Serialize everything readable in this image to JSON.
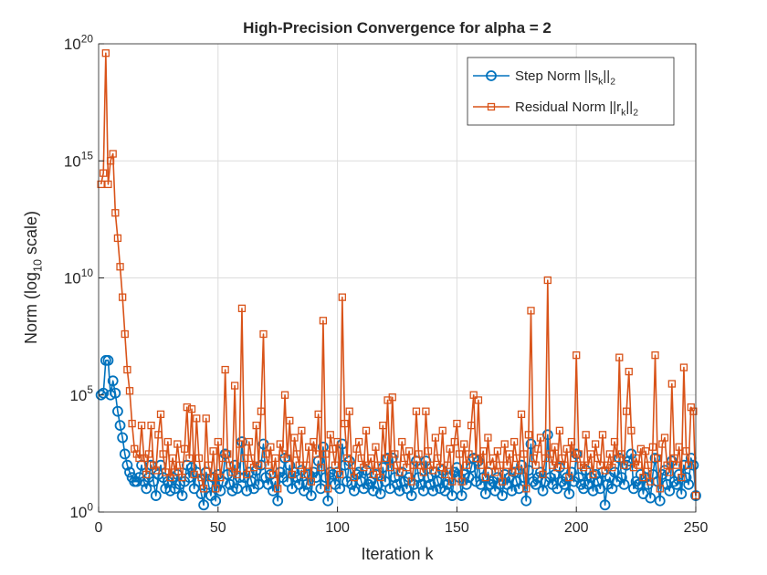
{
  "chart_data": {
    "type": "line",
    "title": "High-Precision Convergence for alpha = 2",
    "xlabel": "Iteration k",
    "ylabel": "Norm (log_{10} scale)",
    "yscale": "log",
    "grid": true,
    "legend_position": "northeast",
    "xlim": [
      0,
      250
    ],
    "ylim": [
      1,
      1e+20
    ],
    "xticks": [
      0,
      50,
      100,
      150,
      200,
      250
    ],
    "yticks": [
      {
        "value": 1,
        "label": "10^0"
      },
      {
        "value": 100000.0,
        "label": "10^5"
      },
      {
        "value": 10000000000.0,
        "label": "10^{10}"
      },
      {
        "value": 1000000000000000.0,
        "label": "10^{15}"
      },
      {
        "value": 1e+20,
        "label": "10^{20}"
      }
    ],
    "x": [
      1,
      2,
      3,
      4,
      5,
      6,
      7,
      8,
      9,
      10,
      11,
      12,
      13,
      14,
      15,
      16,
      17,
      18,
      19,
      20,
      21,
      22,
      23,
      24,
      25,
      26,
      27,
      28,
      29,
      30,
      31,
      32,
      33,
      34,
      35,
      36,
      37,
      38,
      39,
      40,
      41,
      42,
      43,
      44,
      45,
      46,
      47,
      48,
      49,
      50,
      51,
      52,
      53,
      54,
      55,
      56,
      57,
      58,
      59,
      60,
      61,
      62,
      63,
      64,
      65,
      66,
      67,
      68,
      69,
      70,
      71,
      72,
      73,
      74,
      75,
      76,
      77,
      78,
      79,
      80,
      81,
      82,
      83,
      84,
      85,
      86,
      87,
      88,
      89,
      90,
      91,
      92,
      93,
      94,
      95,
      96,
      97,
      98,
      99,
      100,
      101,
      102,
      103,
      104,
      105,
      106,
      107,
      108,
      109,
      110,
      111,
      112,
      113,
      114,
      115,
      116,
      117,
      118,
      119,
      120,
      121,
      122,
      123,
      124,
      125,
      126,
      127,
      128,
      129,
      130,
      131,
      132,
      133,
      134,
      135,
      136,
      137,
      138,
      139,
      140,
      141,
      142,
      143,
      144,
      145,
      146,
      147,
      148,
      149,
      150,
      151,
      152,
      153,
      154,
      155,
      156,
      157,
      158,
      159,
      160,
      161,
      162,
      163,
      164,
      165,
      166,
      167,
      168,
      169,
      170,
      171,
      172,
      173,
      174,
      175,
      176,
      177,
      178,
      179,
      180,
      181,
      182,
      183,
      184,
      185,
      186,
      187,
      188,
      189,
      190,
      191,
      192,
      193,
      194,
      195,
      196,
      197,
      198,
      199,
      200,
      201,
      202,
      203,
      204,
      205,
      206,
      207,
      208,
      209,
      210,
      211,
      212,
      213,
      214,
      215,
      216,
      217,
      218,
      219,
      220,
      221,
      222,
      223,
      224,
      225,
      226,
      227,
      228,
      229,
      230,
      231,
      232,
      233,
      234,
      235,
      236,
      237,
      238,
      239,
      240,
      241,
      242,
      243,
      244,
      245,
      246,
      247,
      248,
      249,
      250
    ],
    "series": [
      {
        "name": "Step Norm ||s_k||_2",
        "color": "#0072BD",
        "marker": "circle",
        "values": [
          100000.0,
          120000.0,
          3000000.0,
          3000000.0,
          100000.0,
          400000.0,
          120000.0,
          20000.0,
          5000.0,
          1500.0,
          300.0,
          100.0,
          50.0,
          30.0,
          20.0,
          20.0,
          30.0,
          100.0,
          20.0,
          10.0,
          30.0,
          100.0,
          20.0,
          5,
          40.0,
          100.0,
          30.0,
          10.0,
          20.0,
          8,
          30.0,
          10.0,
          40.0,
          15.0,
          5,
          20.0,
          100.0,
          30.0,
          80.0,
          10.0,
          50.0,
          20.0,
          6,
          2,
          50.0,
          15.0,
          5,
          30.0,
          3,
          40.0,
          8,
          20.0,
          300.0,
          40.0,
          15.0,
          8,
          100.0,
          10.0,
          30.0,
          1000.0,
          30.0,
          8,
          50.0,
          20.0,
          10.0,
          60.0,
          15.0,
          100.0,
          800.0,
          30.0,
          15.0,
          40.0,
          8,
          20.0,
          3,
          50.0,
          30.0,
          200.0,
          20.0,
          100.0,
          10.0,
          50.0,
          30.0,
          15.0,
          60.0,
          8,
          15.0,
          40.0,
          5,
          50.0,
          30.0,
          150.0,
          10.0,
          600.0,
          30.0,
          3,
          50.0,
          40.0,
          15.0,
          50.0,
          10.0,
          800.0,
          100.0,
          20.0,
          150.0,
          15.0,
          8,
          40.0,
          50.0,
          20.0,
          10.0,
          60.0,
          15.0,
          20.0,
          8,
          40.0,
          15.0,
          6,
          80.0,
          20.0,
          200.0,
          10.0,
          200.0,
          30.0,
          15.0,
          8,
          50.0,
          20.0,
          10.0,
          30.0,
          5,
          15.0,
          150.0,
          30.0,
          15.0,
          8,
          150.0,
          30.0,
          15.0,
          8,
          50.0,
          20.0,
          10.0,
          60.0,
          8,
          15.0,
          30.0,
          5,
          50.0,
          80.0,
          30.0,
          5,
          40.0,
          15.0,
          30.0,
          80.0,
          200.0,
          20.0,
          150.0,
          15.0,
          30.0,
          6,
          50.0,
          15.0,
          20.0,
          8,
          30.0,
          15.0,
          5,
          40.0,
          15.0,
          30.0,
          8,
          50.0,
          20.0,
          10.0,
          100.0,
          30.0,
          3,
          60.0,
          800.0,
          20.0,
          15.0,
          30.0,
          50.0,
          8,
          20.0,
          2000.0,
          30.0,
          15.0,
          40.0,
          10.0,
          80.0,
          20.0,
          15.0,
          30.0,
          6,
          50.0,
          20.0,
          300.0,
          30.0,
          15.0,
          10.0,
          60.0,
          15.0,
          30.0,
          8,
          40.0,
          20.0,
          10.0,
          50.0,
          2,
          15.0,
          30.0,
          10.0,
          50.0,
          20.0,
          200.0,
          30.0,
          15.0,
          100.0,
          150.0,
          300.0,
          10.0,
          20.0,
          15.0,
          40.0,
          6,
          30.0,
          15.0,
          4,
          40.0,
          200.0,
          20.0,
          3,
          40.0,
          60.0,
          15.0,
          8,
          150.0,
          20.0,
          15.0,
          40.0,
          6,
          100.0,
          30.0,
          15.0,
          200.0,
          100.0,
          5
        ]
      },
      {
        "name": "Residual Norm ||r_k||_2",
        "color": "#D95319",
        "marker": "square",
        "values": [
          100000000000000.0,
          300000000000000.0,
          4e+19,
          100000000000000.0,
          1000000000000000.0,
          2000000000000000.0,
          6000000000000.0,
          500000000000.0,
          30000000000.0,
          1500000000.0,
          40000000.0,
          1200000.0,
          150000.0,
          6000.0,
          500.0,
          300.0,
          200.0,
          5000.0,
          200.0,
          40.0,
          300.0,
          5000.0,
          100.0,
          60.0,
          2000.0,
          15000.0,
          300.0,
          50.0,
          1000.0,
          30.0,
          200.0,
          50.0,
          800.0,
          100.0,
          30.0,
          500.0,
          30000.0,
          200.0,
          25000.0,
          40.0,
          10000.0,
          200.0,
          30.0,
          10.0,
          10000.0,
          100.0,
          30.0,
          400.0,
          10.0,
          1000.0,
          30.0,
          200.0,
          1200000.0,
          300.0,
          100.0,
          50.0,
          250000.0,
          40.0,
          800.0,
          500000000.0,
          200.0,
          40.0,
          1000.0,
          200.0,
          80.0,
          5000.0,
          100.0,
          20000.0,
          40000000.0,
          300.0,
          100.0,
          600.0,
          40.0,
          200.0,
          10.0,
          800.0,
          300.0,
          100000.0,
          200.0,
          8000.0,
          40.0,
          1500.0,
          300.0,
          100.0,
          3000.0,
          40.0,
          100.0,
          600.0,
          20.0,
          1000.0,
          300.0,
          15000.0,
          80.0,
          150000000.0,
          300.0,
          10.0,
          2000.0,
          500.0,
          100.0,
          1000.0,
          40.0,
          1500000000.0,
          6000.0,
          200.0,
          20000.0,
          100.0,
          30.0,
          500.0,
          1000.0,
          200.0,
          80.0,
          3000.0,
          100.0,
          200.0,
          40.0,
          600.0,
          100.0,
          30.0,
          5000.0,
          200.0,
          60000.0,
          80.0,
          80000.0,
          300.0,
          100.0,
          50.0,
          1000.0,
          200.0,
          80.0,
          400.0,
          20.0,
          100.0,
          20000.0,
          300.0,
          100.0,
          50.0,
          20000.0,
          400.0,
          100.0,
          60.0,
          1500.0,
          200.0,
          80.0,
          3000.0,
          40.0,
          100.0,
          500.0,
          20.0,
          1000.0,
          6000.0,
          300.0,
          20.0,
          800.0,
          100.0,
          300.0,
          5000.0,
          100000.0,
          200.0,
          60000.0,
          100.0,
          400.0,
          30.0,
          1500.0,
          100.0,
          200.0,
          50.0,
          400.0,
          100.0,
          20.0,
          800.0,
          100.0,
          300.0,
          50.0,
          1000.0,
          200.0,
          60.0,
          15000.0,
          300.0,
          10.0,
          2000.0,
          400000000.0,
          200.0,
          100.0,
          500.0,
          1500.0,
          40.0,
          200.0,
          8000000000.0,
          300.0,
          100.0,
          600.0,
          80.0,
          3000.0,
          200.0,
          100.0,
          500.0,
          30.0,
          1000.0,
          200.0,
          5000000.0,
          300.0,
          100.0,
          80.0,
          2000.0,
          100.0,
          300.0,
          40.0,
          800.0,
          200.0,
          100.0,
          2000.0,
          60.0,
          100.0,
          300.0,
          80.0,
          1000.0,
          200.0,
          4000000.0,
          300.0,
          100.0,
          20000.0,
          1000000.0,
          3000.0,
          80.0,
          200.0,
          100.0,
          500.0,
          30.0,
          400.0,
          100.0,
          20.0,
          600.0,
          5000000.0,
          200.0,
          10.0,
          800.0,
          1500.0,
          100.0,
          50.0,
          300000.0,
          200.0,
          100.0,
          600.0,
          30.0,
          1500000.0,
          400.0,
          100.0,
          30000.0,
          20000.0,
          5
        ]
      }
    ]
  }
}
